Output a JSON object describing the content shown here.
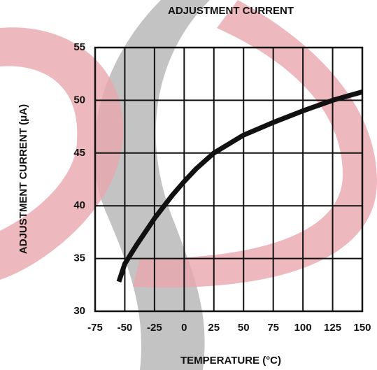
{
  "chart_data": {
    "type": "line",
    "title": "ADJUSTMENT CURRENT",
    "x_label": "TEMPERATURE (°C)",
    "y_label": "ADJUSTMENT CURRENT (μA)",
    "x": [
      -55,
      -50,
      -40,
      -25,
      -10,
      0,
      10,
      25,
      50,
      75,
      100,
      125,
      150
    ],
    "series": [
      {
        "name": "Adjustment current",
        "color": "#111111",
        "values": [
          32.8,
          34.5,
          36.3,
          38.8,
          41.0,
          42.3,
          43.5,
          45.0,
          46.7,
          47.9,
          49.0,
          50.0,
          50.8
        ]
      }
    ],
    "xlim": [
      -75,
      150
    ],
    "xticks": [
      -75,
      -50,
      -25,
      0,
      25,
      50,
      75,
      100,
      125,
      150
    ],
    "ylim": [
      30,
      55
    ],
    "yticks": [
      30,
      35,
      40,
      45,
      50,
      55
    ],
    "grid": true
  }
}
